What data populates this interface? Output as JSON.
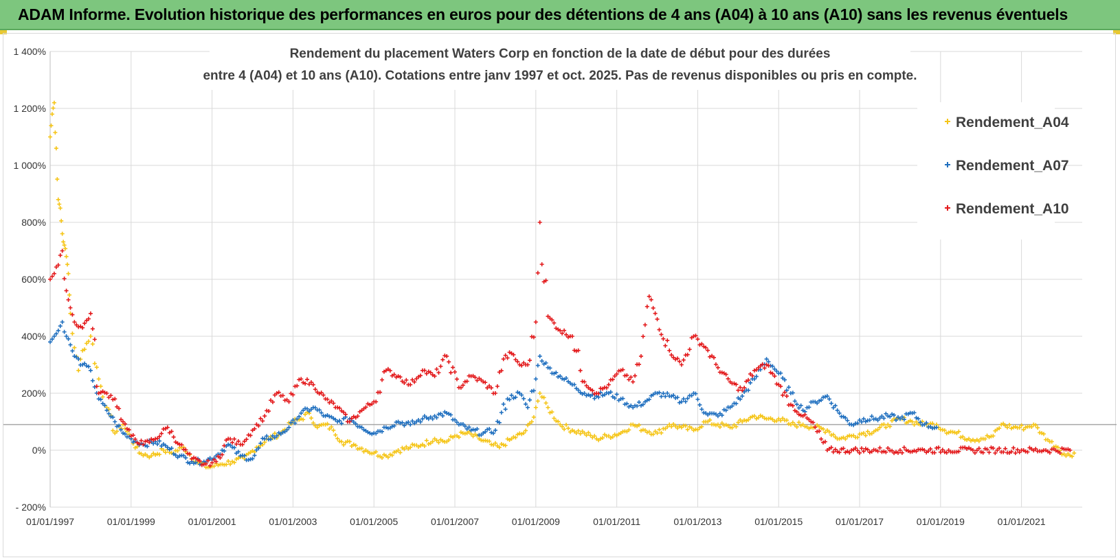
{
  "banner": {
    "title": "ADAM Informe. Evolution historique des performances en euros pour des détentions de 4 ans (A04) à 10 ans (A10) sans les revenus éventuels"
  },
  "colors": {
    "banner_bg": "#7dc67e",
    "A04": "#f5c518",
    "A07": "#1f6fbf",
    "A10": "#e31a1c",
    "grid": "#d9d9d9",
    "ref_line": "#a6a6a6"
  },
  "chart_data": {
    "type": "scatter",
    "title_line1": "Rendement du placement Waters Corp en fonction de la date de début pour des durées",
    "title_line2": "entre 4 (A04) et 10 ans (A10). Cotations entre janv 1997 et oct. 2025. Pas de revenus disponibles ou pris en compte.",
    "xlabel": "",
    "ylabel": "",
    "xlim": [
      1997.0,
      2022.5
    ],
    "ylim": [
      -200,
      1400
    ],
    "y_ticks": [
      -200,
      0,
      200,
      400,
      600,
      800,
      1000,
      1200,
      1400
    ],
    "y_tick_labels": [
      "- 200%",
      "0%",
      "200%",
      "400%",
      "600%",
      "800%",
      "1 000%",
      "1 200%",
      "1 400%"
    ],
    "x_ticks": [
      1997,
      1999,
      2001,
      2003,
      2005,
      2007,
      2009,
      2011,
      2013,
      2015,
      2017,
      2019,
      2021
    ],
    "x_tick_labels": [
      "01/01/1997",
      "01/01/1999",
      "01/01/2001",
      "01/01/2003",
      "01/01/2005",
      "01/01/2007",
      "01/01/2009",
      "01/01/2011",
      "01/01/2013",
      "01/01/2015",
      "01/01/2017",
      "01/01/2019",
      "01/01/2021"
    ],
    "reference_line_y": 90,
    "legend_position": "top-right",
    "series": [
      {
        "name": "Rendement_A04",
        "x": [
          1997.0,
          1997.05,
          1997.1,
          1997.15,
          1997.2,
          1997.25,
          1997.3,
          1997.35,
          1997.4,
          1997.45,
          1997.5,
          1997.6,
          1997.7,
          1997.8,
          1998.0,
          1998.2,
          1998.4,
          1998.6,
          1998.8,
          1999.0,
          1999.2,
          1999.5,
          1999.8,
          2000.0,
          2000.3,
          2000.6,
          2000.9,
          2001.2,
          2001.5,
          2001.8,
          2002.1,
          2002.4,
          2002.7,
          2003.0,
          2003.2,
          2003.4,
          2003.6,
          2003.8,
          2004.0,
          2004.2,
          2004.5,
          2004.8,
          2005.0,
          2005.3,
          2005.6,
          2005.9,
          2006.2,
          2006.5,
          2006.8,
          2007.0,
          2007.3,
          2007.6,
          2007.9,
          2008.1,
          2008.4,
          2008.7,
          2008.9,
          2009.0,
          2009.1,
          2009.3,
          2009.6,
          2009.9,
          2010.2,
          2010.5,
          2010.8,
          2011.1,
          2011.4,
          2011.7,
          2012.0,
          2012.3,
          2012.6,
          2012.9,
          2013.2,
          2013.5,
          2013.8,
          2014.1,
          2014.4,
          2014.7,
          2015.0,
          2015.3,
          2015.6,
          2015.9,
          2016.2,
          2016.5,
          2016.8,
          2017.1,
          2017.4,
          2017.7,
          2018.0,
          2018.3,
          2018.6,
          2018.9,
          2019.1,
          2019.4,
          2019.7,
          2020.0,
          2020.3,
          2020.5,
          2020.8,
          2021.1,
          2021.3,
          2021.5,
          2021.7,
          2021.9,
          2022.1,
          2022.3
        ],
        "y": [
          1100,
          1180,
          1220,
          1060,
          880,
          850,
          760,
          720,
          680,
          620,
          480,
          360,
          280,
          350,
          400,
          250,
          150,
          60,
          90,
          40,
          -10,
          -20,
          0,
          -10,
          10,
          -40,
          -60,
          -50,
          -40,
          -30,
          10,
          40,
          60,
          100,
          110,
          130,
          80,
          90,
          70,
          30,
          20,
          0,
          -10,
          -20,
          0,
          10,
          20,
          40,
          30,
          50,
          60,
          40,
          20,
          10,
          40,
          60,
          100,
          150,
          200,
          150,
          90,
          70,
          60,
          40,
          50,
          60,
          90,
          70,
          60,
          90,
          80,
          70,
          100,
          90,
          80,
          100,
          120,
          110,
          110,
          90,
          90,
          80,
          70,
          40,
          50,
          60,
          70,
          90,
          110,
          100,
          90,
          90,
          70,
          60,
          40,
          40,
          50,
          90,
          80,
          80,
          90,
          60,
          30,
          10,
          -20,
          -10
        ]
      },
      {
        "name": "Rendement_A07",
        "x": [
          1997.0,
          1997.1,
          1997.2,
          1997.3,
          1997.4,
          1997.5,
          1997.6,
          1997.8,
          1998.0,
          1998.2,
          1998.4,
          1998.6,
          1998.8,
          1999.0,
          1999.3,
          1999.6,
          1999.9,
          2000.2,
          2000.5,
          2000.8,
          2001.1,
          2001.4,
          2001.7,
          2002.0,
          2002.3,
          2002.6,
          2002.9,
          2003.2,
          2003.5,
          2003.8,
          2004.1,
          2004.4,
          2004.7,
          2005.0,
          2005.3,
          2005.6,
          2005.9,
          2006.2,
          2006.5,
          2006.8,
          2007.1,
          2007.4,
          2007.7,
          2008.0,
          2008.3,
          2008.6,
          2008.8,
          2009.0,
          2009.1,
          2009.3,
          2009.6,
          2009.9,
          2010.2,
          2010.5,
          2010.8,
          2011.1,
          2011.4,
          2011.7,
          2012.0,
          2012.3,
          2012.6,
          2012.9,
          2013.2,
          2013.5,
          2013.8,
          2014.1,
          2014.4,
          2014.7,
          2015.0,
          2015.3,
          2015.6,
          2015.9,
          2016.2,
          2016.5,
          2016.8,
          2017.1,
          2017.4,
          2017.7,
          2018.0,
          2018.3,
          2018.6,
          2018.9
        ],
        "y": [
          380,
          400,
          420,
          450,
          400,
          370,
          330,
          300,
          280,
          180,
          140,
          100,
          60,
          40,
          20,
          30,
          10,
          -20,
          -40,
          -40,
          -20,
          20,
          -20,
          -30,
          40,
          50,
          80,
          130,
          150,
          120,
          100,
          110,
          80,
          60,
          80,
          100,
          90,
          110,
          120,
          130,
          90,
          70,
          60,
          70,
          180,
          200,
          150,
          250,
          330,
          290,
          260,
          230,
          200,
          190,
          200,
          180,
          150,
          170,
          200,
          190,
          170,
          200,
          130,
          120,
          150,
          190,
          250,
          320,
          270,
          200,
          140,
          170,
          190,
          130,
          90,
          110,
          110,
          120,
          110,
          130,
          90,
          80
        ]
      },
      {
        "name": "Rendement_A10",
        "x": [
          1997.0,
          1997.1,
          1997.2,
          1997.3,
          1997.4,
          1997.5,
          1997.6,
          1997.8,
          1998.0,
          1998.2,
          1998.4,
          1998.6,
          1998.8,
          1999.0,
          1999.3,
          1999.6,
          1999.9,
          2000.2,
          2000.5,
          2000.8,
          2001.1,
          2001.4,
          2001.7,
          2002.0,
          2002.3,
          2002.6,
          2002.9,
          2003.2,
          2003.5,
          2003.8,
          2004.1,
          2004.4,
          2004.7,
          2005.0,
          2005.3,
          2005.6,
          2005.9,
          2006.2,
          2006.5,
          2006.8,
          2007.1,
          2007.4,
          2007.7,
          2008.0,
          2008.2,
          2008.4,
          2008.6,
          2008.8,
          2009.0,
          2009.1,
          2009.3,
          2009.6,
          2009.9,
          2010.2,
          2010.5,
          2010.8,
          2011.1,
          2011.4,
          2011.6,
          2011.8,
          2012.0,
          2012.3,
          2012.6,
          2012.9,
          2013.2,
          2013.5,
          2013.8,
          2014.1,
          2014.4,
          2014.7,
          2015.0,
          2015.3,
          2015.6,
          2015.8,
          2016.2,
          2016.8,
          2017.4,
          2018.0,
          2018.6,
          2019.2,
          2019.8,
          2020.4,
          2021.0,
          2021.6,
          2022.2
        ],
        "y": [
          600,
          620,
          650,
          700,
          560,
          500,
          450,
          430,
          480,
          200,
          200,
          180,
          100,
          50,
          20,
          40,
          80,
          20,
          -30,
          -50,
          -40,
          40,
          20,
          70,
          120,
          200,
          170,
          250,
          230,
          180,
          150,
          100,
          140,
          170,
          280,
          260,
          230,
          280,
          260,
          330,
          220,
          260,
          240,
          200,
          320,
          340,
          300,
          300,
          450,
          800,
          470,
          420,
          400,
          240,
          200,
          230,
          280,
          240,
          330,
          540,
          460,
          350,
          300,
          400,
          360,
          290,
          240,
          210,
          280,
          300,
          230,
          160,
          120,
          100,
          0,
          0,
          0,
          0,
          0,
          0,
          0,
          0,
          0,
          0,
          0
        ]
      }
    ]
  }
}
